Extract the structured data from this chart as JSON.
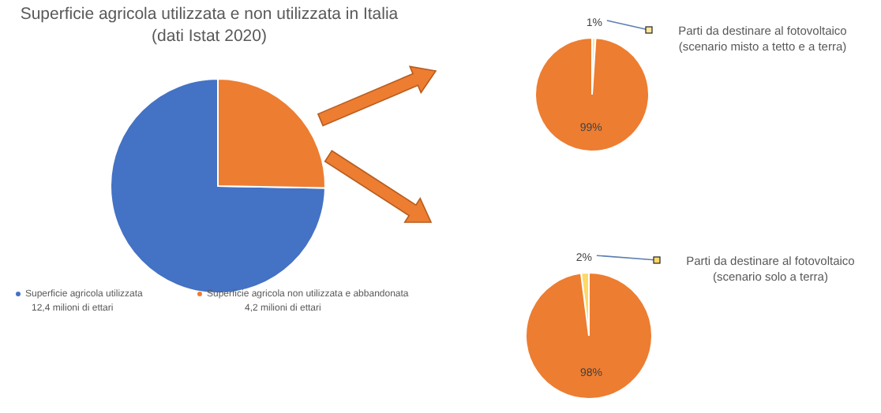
{
  "chart_data": [
    {
      "type": "pie",
      "title": "Superficie agricola utilizzata e non utilizzata in Italia",
      "subtitle": "(dati Istat 2020)",
      "categories": [
        "Superficie agricola utilizzata",
        "Superficie agricola non utilizzata e abbandonata"
      ],
      "values": [
        12.4,
        4.2
      ],
      "colors": [
        "#4472c4",
        "#ed7d31"
      ],
      "value_labels": [
        "12,4 milioni di ettari",
        "4,2 milioni di ettari"
      ],
      "legend": "bottom"
    },
    {
      "type": "pie",
      "categories": [
        "Parti da destinare al fotovoltaico (scenario misto a tetto e a terra)",
        null
      ],
      "values": [
        1,
        99
      ],
      "colors": [
        "#ffe699",
        "#ed7d31"
      ],
      "value_labels": [
        "1%",
        "99%"
      ]
    },
    {
      "type": "pie",
      "categories": [
        "Parti da destinare al fotovoltaico (scenario solo a terra)",
        null
      ],
      "values": [
        2,
        98
      ],
      "colors": [
        "#ffd966",
        "#ed7d31"
      ],
      "value_labels": [
        "2%",
        "98%"
      ]
    }
  ]
}
